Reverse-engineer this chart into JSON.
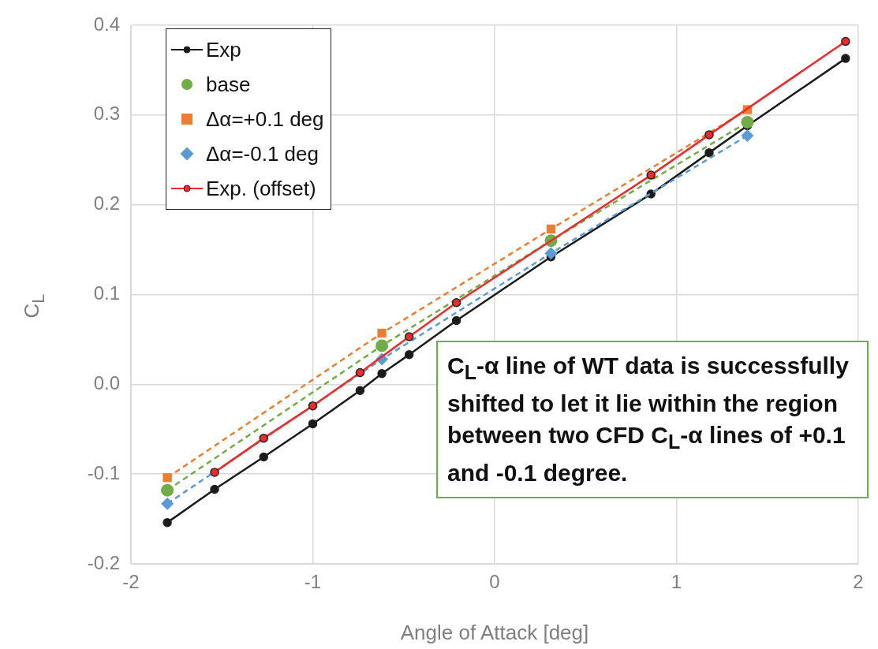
{
  "chart_data": {
    "type": "line",
    "xlabel": "Angle of Attack [deg]",
    "ylabel": "C$_{L}$",
    "xlim": [
      -2,
      2
    ],
    "xticks": [
      -2,
      -1,
      0,
      1,
      2
    ],
    "ylim": [
      -0.2,
      0.4
    ],
    "yticks": [
      {
        "value": -0.2,
        "label": "-0.2"
      },
      {
        "value": -0.1,
        "label": "-0.1"
      },
      {
        "value": 0,
        "label": "0.0"
      },
      {
        "value": 0.1,
        "label": "0.1"
      },
      {
        "value": 0.2,
        "label": "0.2"
      },
      {
        "value": 0.3,
        "label": "0.3"
      },
      {
        "value": 0.4,
        "label": "0.4"
      }
    ],
    "grid": true,
    "legend": "top left",
    "series": [
      {
        "name": "Exp",
        "color": "#1a1a1a",
        "marker": "circle",
        "line_style": "solid",
        "x": [
          -1.8,
          -1.54,
          -1.27,
          -1.0,
          -0.74,
          -0.62,
          -0.47,
          -0.21,
          0.31,
          0.86,
          1.18,
          1.39,
          1.93
        ],
        "values": [
          -0.154,
          -0.117,
          -0.081,
          -0.044,
          -0.007,
          0.012,
          0.033,
          0.071,
          0.142,
          0.212,
          0.258,
          0.288,
          0.363
        ]
      },
      {
        "name": "base",
        "color": "#70ad47",
        "marker": "circle",
        "line_style": "dashed",
        "x": [
          -1.8,
          -0.62,
          0.31,
          1.39
        ],
        "values": [
          -0.118,
          0.043,
          0.16,
          0.292
        ]
      },
      {
        "name": "Δα=+0.1 deg",
        "color": "#ed7d31",
        "marker": "square",
        "line_style": "dashed",
        "x": [
          -1.8,
          -0.62,
          0.31,
          1.39
        ],
        "values": [
          -0.104,
          0.057,
          0.173,
          0.306
        ]
      },
      {
        "name": "Δα=-0.1 deg",
        "color": "#5b9bd5",
        "marker": "diamond",
        "line_style": "dashed",
        "x": [
          -1.8,
          -0.62,
          0.31,
          1.39
        ],
        "values": [
          -0.133,
          0.028,
          0.146,
          0.277
        ]
      },
      {
        "name": "Exp. (offset)",
        "color": "#ee2a2a",
        "marker": "circle",
        "line_style": "solid",
        "x": [
          -1.54,
          -1.27,
          -1.0,
          -0.74,
          -0.47,
          -0.21,
          0.86,
          1.18,
          1.93
        ],
        "values": [
          -0.098,
          -0.06,
          -0.024,
          0.013,
          0.053,
          0.091,
          0.233,
          0.278,
          0.382
        ]
      }
    ],
    "annotations": [
      "C$_{L}$-α line of WT data is successfully shifted to let it lie within the region between two CFD C$_{L}$-α lines of +0.1 and -0.1 degree."
    ]
  }
}
